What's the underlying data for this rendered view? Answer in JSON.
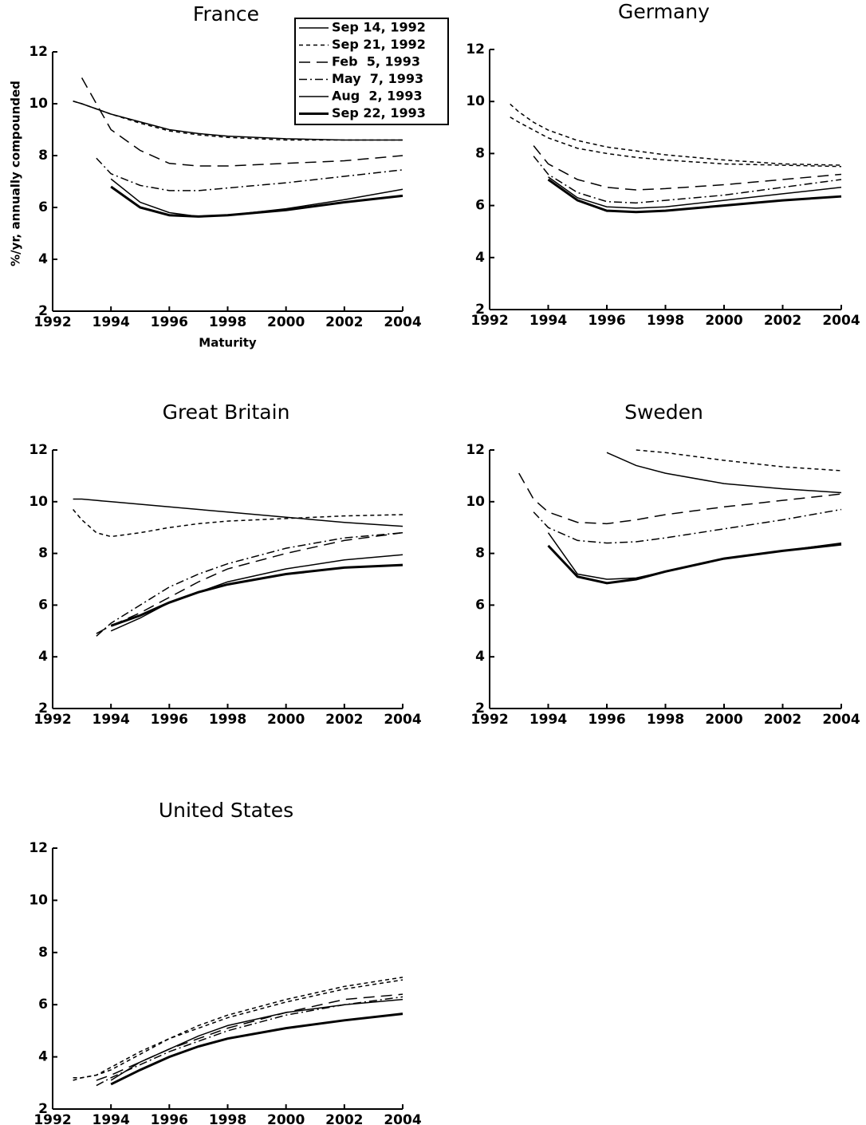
{
  "chart_data": [
    {
      "type": "line",
      "title": "France",
      "y_label": "%/yr, annually compounded",
      "x_label": "Maturity",
      "x": [
        1992.7,
        1993,
        1993.5,
        1994,
        1995,
        1996,
        1997,
        1998,
        2000,
        2002,
        2004
      ],
      "xlim": [
        1992,
        2004
      ],
      "xticks": [
        1992,
        1994,
        1996,
        1998,
        2000,
        2002,
        2004
      ],
      "ylim": [
        2,
        12
      ],
      "yticks": [
        2,
        4,
        6,
        8,
        10,
        12
      ],
      "legend": "top-right",
      "series": [
        {
          "name": "Sep 14, 1992",
          "style": "solid",
          "linewidth": 1.5,
          "color": "#000000",
          "values": [
            10.1,
            10.0,
            9.8,
            9.6,
            9.3,
            9.0,
            8.85,
            8.75,
            8.65,
            8.6,
            8.6
          ]
        },
        {
          "name": "Sep 21, 1992",
          "style": "dotted",
          "linewidth": 1.5,
          "color": "#000000",
          "values": [
            10.1,
            10.0,
            9.8,
            9.6,
            9.25,
            8.95,
            8.8,
            8.7,
            8.6,
            8.6,
            8.6
          ]
        },
        {
          "name": "Feb  5, 1993",
          "style": "dashed",
          "linewidth": 1.5,
          "color": "#000000",
          "values": [
            null,
            11.0,
            10.0,
            9.0,
            8.2,
            7.7,
            7.6,
            7.6,
            7.7,
            7.8,
            8.0
          ]
        },
        {
          "name": "May  7, 1993",
          "style": "dashdot",
          "linewidth": 1.5,
          "color": "#000000",
          "values": [
            null,
            null,
            7.9,
            7.3,
            6.85,
            6.65,
            6.65,
            6.75,
            6.95,
            7.2,
            7.45
          ]
        },
        {
          "name": "Aug  2, 1993",
          "style": "solid",
          "linewidth": 1.5,
          "color": "#000000",
          "values": [
            null,
            null,
            null,
            7.1,
            6.2,
            5.8,
            5.65,
            5.7,
            5.95,
            6.3,
            6.7
          ]
        },
        {
          "name": "Sep 22, 1993",
          "style": "solid",
          "linewidth": 3,
          "color": "#000000",
          "values": [
            null,
            null,
            null,
            6.8,
            6.0,
            5.7,
            5.65,
            5.7,
            5.9,
            6.2,
            6.45
          ]
        }
      ]
    },
    {
      "type": "line",
      "title": "Germany",
      "x": [
        1992.7,
        1993,
        1993.5,
        1994,
        1995,
        1996,
        1997,
        1998,
        2000,
        2002,
        2004
      ],
      "xlim": [
        1992,
        2004
      ],
      "xticks": [
        1992,
        1994,
        1996,
        1998,
        2000,
        2002,
        2004
      ],
      "ylim": [
        2,
        12
      ],
      "yticks": [
        2,
        4,
        6,
        8,
        10,
        12
      ],
      "series": [
        {
          "style": "dotted",
          "linewidth": 1.5,
          "color": "#000000",
          "values": [
            9.9,
            9.6,
            9.2,
            8.9,
            8.5,
            8.25,
            8.1,
            7.95,
            7.75,
            7.6,
            7.55
          ]
        },
        {
          "style": "dotted",
          "linewidth": 1.5,
          "color": "#000000",
          "values": [
            9.4,
            9.2,
            8.9,
            8.6,
            8.2,
            8.0,
            7.85,
            7.75,
            7.6,
            7.55,
            7.5
          ]
        },
        {
          "style": "dashed",
          "linewidth": 1.5,
          "color": "#000000",
          "values": [
            null,
            null,
            8.3,
            7.6,
            7.0,
            6.7,
            6.6,
            6.65,
            6.8,
            7.0,
            7.2
          ]
        },
        {
          "style": "dashdot",
          "linewidth": 1.5,
          "color": "#000000",
          "values": [
            null,
            null,
            7.9,
            7.2,
            6.5,
            6.15,
            6.1,
            6.2,
            6.4,
            6.7,
            7.0
          ]
        },
        {
          "style": "solid",
          "linewidth": 1.5,
          "color": "#000000",
          "values": [
            null,
            null,
            null,
            7.1,
            6.3,
            5.95,
            5.9,
            5.95,
            6.2,
            6.45,
            6.7
          ]
        },
        {
          "style": "solid",
          "linewidth": 3,
          "color": "#000000",
          "values": [
            null,
            null,
            null,
            7.0,
            6.2,
            5.8,
            5.75,
            5.8,
            6.0,
            6.2,
            6.35
          ]
        }
      ]
    },
    {
      "type": "line",
      "title": "Great Britain",
      "x": [
        1992.7,
        1993,
        1993.5,
        1994,
        1995,
        1996,
        1997,
        1998,
        2000,
        2002,
        2004
      ],
      "xlim": [
        1992,
        2004
      ],
      "xticks": [
        1992,
        1994,
        1996,
        1998,
        2000,
        2002,
        2004
      ],
      "ylim": [
        2,
        12
      ],
      "yticks": [
        2,
        4,
        6,
        8,
        10,
        12
      ],
      "series": [
        {
          "style": "solid",
          "linewidth": 1.5,
          "color": "#000000",
          "values": [
            10.1,
            10.1,
            10.05,
            10.0,
            9.9,
            9.8,
            9.7,
            9.6,
            9.4,
            9.2,
            9.05
          ]
        },
        {
          "style": "dotted",
          "linewidth": 1.5,
          "color": "#000000",
          "values": [
            9.7,
            9.3,
            8.8,
            8.65,
            8.8,
            9.0,
            9.15,
            9.25,
            9.35,
            9.45,
            9.5
          ]
        },
        {
          "style": "dashed",
          "linewidth": 1.5,
          "color": "#000000",
          "values": [
            null,
            null,
            4.9,
            5.2,
            5.7,
            6.3,
            6.9,
            7.4,
            8.0,
            8.5,
            8.8
          ]
        },
        {
          "style": "dashdot",
          "linewidth": 1.5,
          "color": "#000000",
          "values": [
            null,
            null,
            4.8,
            5.3,
            6.0,
            6.7,
            7.2,
            7.6,
            8.2,
            8.6,
            8.8
          ]
        },
        {
          "style": "solid",
          "linewidth": 1.5,
          "color": "#000000",
          "values": [
            null,
            null,
            null,
            5.0,
            5.5,
            6.1,
            6.5,
            6.9,
            7.4,
            7.75,
            7.95
          ]
        },
        {
          "style": "solid",
          "linewidth": 3,
          "color": "#000000",
          "values": [
            null,
            null,
            null,
            5.2,
            5.6,
            6.1,
            6.5,
            6.8,
            7.2,
            7.45,
            7.55
          ]
        }
      ]
    },
    {
      "type": "line",
      "title": "Sweden",
      "x": [
        1992.7,
        1993,
        1993.5,
        1994,
        1995,
        1996,
        1997,
        1998,
        2000,
        2002,
        2004
      ],
      "xlim": [
        1992,
        2004
      ],
      "xticks": [
        1992,
        1994,
        1996,
        1998,
        2000,
        2002,
        2004
      ],
      "ylim": [
        2,
        12
      ],
      "yticks": [
        2,
        4,
        6,
        8,
        10,
        12
      ],
      "series": [
        {
          "style": "solid",
          "linewidth": 1.5,
          "color": "#000000",
          "values": [
            null,
            null,
            null,
            null,
            null,
            11.9,
            11.4,
            11.1,
            10.7,
            10.5,
            10.35
          ]
        },
        {
          "style": "dotted",
          "linewidth": 1.5,
          "color": "#000000",
          "values": [
            null,
            null,
            null,
            null,
            null,
            null,
            12.0,
            11.9,
            11.6,
            11.35,
            11.2
          ]
        },
        {
          "style": "dashed",
          "linewidth": 1.5,
          "color": "#000000",
          "values": [
            null,
            11.1,
            10.1,
            9.6,
            9.2,
            9.15,
            9.3,
            9.5,
            9.8,
            10.05,
            10.3
          ]
        },
        {
          "style": "dashdot",
          "linewidth": 1.5,
          "color": "#000000",
          "values": [
            null,
            null,
            9.6,
            9.0,
            8.5,
            8.4,
            8.45,
            8.6,
            8.95,
            9.3,
            9.7
          ]
        },
        {
          "style": "solid",
          "linewidth": 1.5,
          "color": "#000000",
          "values": [
            null,
            null,
            null,
            8.8,
            7.2,
            7.0,
            7.05,
            7.3,
            7.8,
            8.1,
            8.4
          ]
        },
        {
          "style": "solid",
          "linewidth": 3,
          "color": "#000000",
          "values": [
            null,
            null,
            null,
            8.3,
            7.1,
            6.85,
            7.0,
            7.3,
            7.8,
            8.1,
            8.35
          ]
        }
      ]
    },
    {
      "type": "line",
      "title": "United States",
      "x": [
        1992.7,
        1993,
        1993.5,
        1994,
        1995,
        1996,
        1997,
        1998,
        2000,
        2002,
        2004
      ],
      "xlim": [
        1992,
        2004
      ],
      "xticks": [
        1992,
        1994,
        1996,
        1998,
        2000,
        2002,
        2004
      ],
      "ylim": [
        2,
        12
      ],
      "yticks": [
        2,
        4,
        6,
        8,
        10,
        12
      ],
      "series": [
        {
          "style": "dotted",
          "linewidth": 1.5,
          "color": "#000000",
          "values": [
            3.2,
            3.2,
            3.3,
            3.6,
            4.2,
            4.7,
            5.1,
            5.5,
            6.1,
            6.6,
            6.95
          ]
        },
        {
          "style": "dotted",
          "linewidth": 1.5,
          "color": "#000000",
          "values": [
            3.1,
            3.2,
            3.3,
            3.5,
            4.1,
            4.7,
            5.2,
            5.6,
            6.2,
            6.7,
            7.05
          ]
        },
        {
          "style": "dashed",
          "linewidth": 1.5,
          "color": "#000000",
          "values": [
            null,
            null,
            3.1,
            3.3,
            3.8,
            4.3,
            4.7,
            5.1,
            5.7,
            6.2,
            6.4
          ]
        },
        {
          "style": "dashdot",
          "linewidth": 1.5,
          "color": "#000000",
          "values": [
            null,
            null,
            2.9,
            3.2,
            3.7,
            4.2,
            4.6,
            5.0,
            5.6,
            6.0,
            6.3
          ]
        },
        {
          "style": "solid",
          "linewidth": 1.5,
          "color": "#000000",
          "values": [
            null,
            null,
            null,
            3.1,
            3.8,
            4.3,
            4.8,
            5.2,
            5.7,
            6.0,
            6.2
          ]
        },
        {
          "style": "solid",
          "linewidth": 3,
          "color": "#000000",
          "values": [
            null,
            null,
            null,
            2.95,
            3.5,
            4.0,
            4.4,
            4.7,
            5.1,
            5.4,
            5.65
          ]
        }
      ]
    }
  ]
}
